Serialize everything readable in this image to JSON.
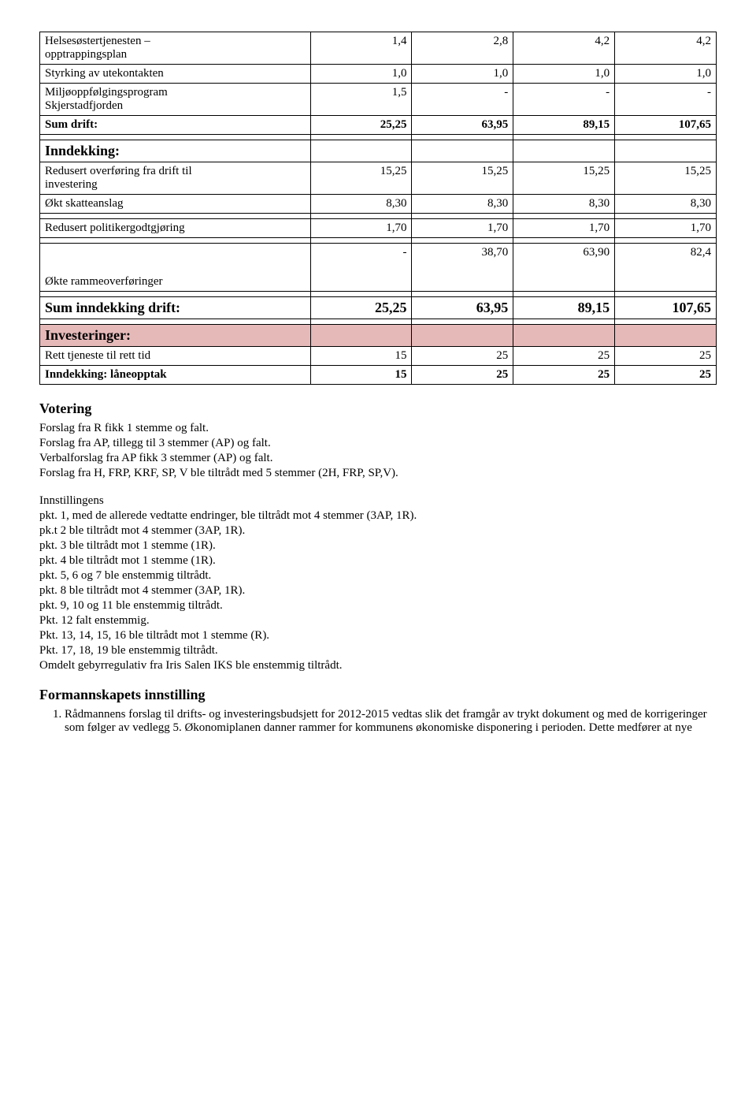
{
  "table1": {
    "rows": [
      {
        "label": "Helsesøstertjenesten –\nopptrappingsplan",
        "v": [
          "1,4",
          "2,8",
          "4,2",
          "4,2"
        ]
      },
      {
        "label": "Styrking av utekontakten",
        "v": [
          "1,0",
          "1,0",
          "1,0",
          "1,0"
        ]
      },
      {
        "label": "Miljøoppfølgingsprogram\nSkjerstadfjorden",
        "v": [
          "1,5",
          "-",
          "-",
          "-"
        ]
      },
      {
        "label": "Sum drift:",
        "v": [
          "25,25",
          "63,95",
          "89,15",
          "107,65"
        ],
        "bold": true
      },
      {
        "label": "",
        "v": [
          "",
          "",
          "",
          ""
        ],
        "blank": true
      },
      {
        "label": "Inndekking:",
        "v": [
          "",
          "",
          "",
          ""
        ],
        "bigbold": true
      },
      {
        "label": "Redusert overføring fra drift til\ninvestering",
        "v": [
          "15,25",
          "15,25",
          "15,25",
          "15,25"
        ]
      },
      {
        "label": "Økt skatteanslag",
        "v": [
          "8,30",
          "8,30",
          "8,30",
          "8,30"
        ]
      },
      {
        "label": "",
        "v": [
          "",
          "",
          "",
          ""
        ],
        "blank": true
      },
      {
        "label": "Redusert politikergodtgjøring",
        "v": [
          "1,70",
          "1,70",
          "1,70",
          "1,70"
        ]
      },
      {
        "label": "",
        "v": [
          "",
          "",
          "",
          ""
        ],
        "blank": true
      },
      {
        "label": "Økte rammeoverføringer",
        "v": [
          "-",
          "38,70",
          "63,90",
          "82,4"
        ],
        "tall": true
      },
      {
        "label": "",
        "v": [
          "",
          "",
          "",
          ""
        ],
        "blank": true
      },
      {
        "label": "Sum inndekking drift:",
        "v": [
          "25,25",
          "63,95",
          "89,15",
          "107,65"
        ],
        "bigbold": true
      },
      {
        "label": "",
        "v": [
          "",
          "",
          "",
          ""
        ],
        "blank": true
      },
      {
        "label": "Investeringer:",
        "v": [
          "",
          "",
          "",
          ""
        ],
        "bigbold": true,
        "highlight": true
      },
      {
        "label": "Rett tjeneste til rett tid",
        "v": [
          "15",
          "25",
          "25",
          "25"
        ]
      },
      {
        "label": "Inndekking: låneopptak",
        "v": [
          "15",
          "25",
          "25",
          "25"
        ],
        "bold": true
      }
    ]
  },
  "votering": {
    "heading": "Votering",
    "lines": [
      "Forslag fra R fikk 1 stemme og falt.",
      "Forslag fra AP, tillegg til 3 stemmer (AP) og falt.",
      "Verbalforslag fra AP fikk 3 stemmer (AP) og falt.",
      "Forslag fra H, FRP, KRF, SP, V ble tiltrådt med 5 stemmer (2H, FRP, SP,V)."
    ]
  },
  "innstillingens": {
    "heading": "Innstillingens",
    "lines": [
      "pkt. 1, med de allerede vedtatte endringer, ble tiltrådt mot 4 stemmer (3AP, 1R).",
      "pk.t 2 ble tiltrådt mot 4 stemmer (3AP, 1R).",
      "pkt. 3 ble tiltrådt mot 1 stemme (1R).",
      "pkt. 4 ble tiltrådt mot 1 stemme (1R).",
      "pkt. 5, 6 og 7 ble enstemmig tiltrådt.",
      "pkt. 8 ble tiltrådt mot 4 stemmer (3AP, 1R).",
      "pkt. 9, 10 og 11 ble enstemmig tiltrådt.",
      "Pkt. 12 falt enstemmig.",
      "Pkt. 13, 14, 15, 16 ble tiltrådt mot 1 stemme (R).",
      "Pkt. 17, 18, 19 ble enstemmig tiltrådt.",
      "Omdelt gebyrregulativ fra Iris Salen IKS ble enstemmig tiltrådt."
    ]
  },
  "formannskapets": {
    "heading": "Formannskapets innstilling",
    "item1": "Rådmannens forslag til drifts- og investeringsbudsjett for 2012-2015 vedtas slik det framgår av trykt dokument og med de korrigeringer som følger av vedlegg 5. Økonomiplanen danner rammer for kommunens økonomiske disponering i perioden. Dette medfører at nye"
  }
}
